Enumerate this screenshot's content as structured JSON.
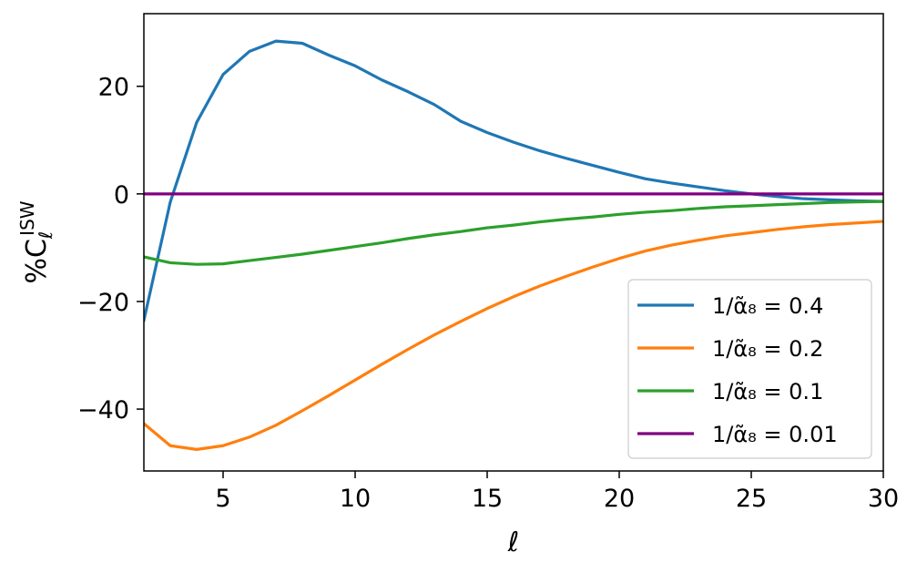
{
  "chart_data": {
    "type": "line",
    "xlabel": "ℓ",
    "ylabel": "%C",
    "ylabel_sup": "ISW",
    "ylabel_sub": "ℓ",
    "xlim": [
      2,
      30
    ],
    "ylim": [
      -51.5,
      33.5
    ],
    "xticks": [
      5,
      10,
      15,
      20,
      25,
      30
    ],
    "xtick_labels": [
      "5",
      "10",
      "15",
      "20",
      "25",
      "30"
    ],
    "yticks": [
      20,
      0,
      -20,
      -40
    ],
    "ytick_labels": [
      "20",
      "0",
      "−20",
      "−40"
    ],
    "grid": false,
    "legend_position": "lower-right",
    "x": [
      2,
      3,
      4,
      5,
      6,
      7,
      8,
      9,
      10,
      11,
      12,
      13,
      14,
      15,
      16,
      17,
      18,
      19,
      20,
      21,
      22,
      23,
      24,
      25,
      26,
      27,
      28,
      29,
      30
    ],
    "series": [
      {
        "name": "1/α̃₈ = 0.4",
        "color": "#1f77b4",
        "values": [
          -23.5,
          -1.5,
          13.3,
          22.2,
          26.5,
          28.4,
          28.0,
          25.8,
          23.8,
          21.2,
          19.0,
          16.6,
          13.5,
          11.4,
          9.6,
          8.0,
          6.6,
          5.3,
          4.0,
          2.8,
          2.0,
          1.3,
          0.6,
          0.0,
          -0.5,
          -0.9,
          -1.1,
          -1.3,
          -1.4
        ]
      },
      {
        "name": "1/α̃₈ = 0.2",
        "color": "#ff7f0e",
        "values": [
          -42.7,
          -46.8,
          -47.5,
          -46.8,
          -45.2,
          -43.0,
          -40.3,
          -37.5,
          -34.6,
          -31.7,
          -28.9,
          -26.2,
          -23.7,
          -21.3,
          -19.1,
          -17.1,
          -15.3,
          -13.6,
          -12.0,
          -10.6,
          -9.5,
          -8.6,
          -7.8,
          -7.2,
          -6.6,
          -6.1,
          -5.7,
          -5.4,
          -5.1
        ]
      },
      {
        "name": "1/α̃₈ = 0.1",
        "color": "#2ca02c",
        "values": [
          -11.7,
          -12.8,
          -13.1,
          -13.0,
          -12.4,
          -11.8,
          -11.2,
          -10.5,
          -9.8,
          -9.1,
          -8.3,
          -7.6,
          -7.0,
          -6.3,
          -5.8,
          -5.2,
          -4.7,
          -4.3,
          -3.8,
          -3.4,
          -3.1,
          -2.7,
          -2.4,
          -2.2,
          -2.0,
          -1.8,
          -1.6,
          -1.5,
          -1.4
        ]
      },
      {
        "name": "1/α̃₈ = 0.01",
        "color": "#800080",
        "values": [
          0.0,
          0.0,
          0.0,
          0.0,
          0.0,
          0.0,
          0.0,
          0.0,
          0.0,
          0.0,
          0.0,
          0.0,
          0.0,
          0.0,
          0.0,
          0.0,
          0.0,
          0.0,
          0.0,
          0.0,
          0.0,
          0.0,
          0.0,
          0.0,
          0.0,
          0.0,
          0.0,
          0.0,
          0.0
        ]
      }
    ]
  }
}
